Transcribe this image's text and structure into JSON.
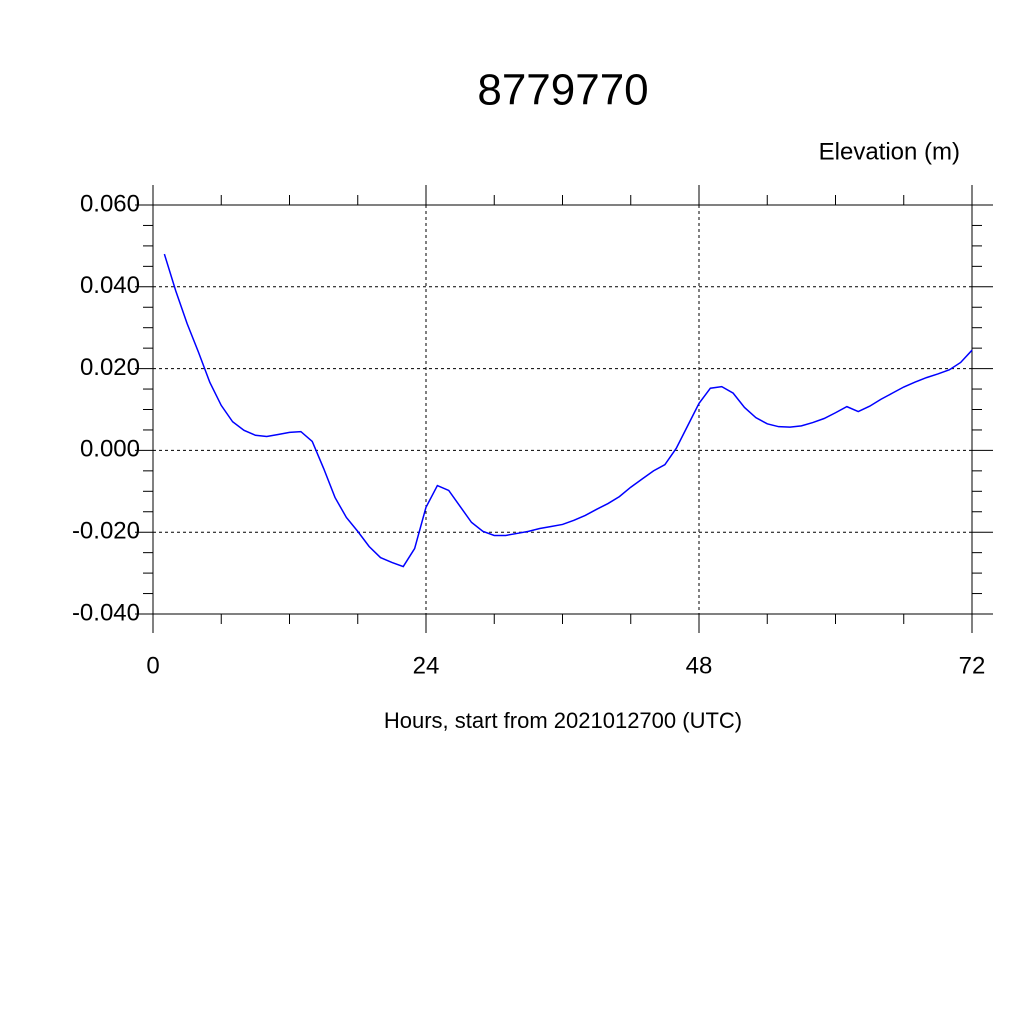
{
  "chart_data": {
    "type": "line",
    "title": "8779770",
    "y_label": "Elevation (m)",
    "x_label": "Hours, start from 2021012700 (UTC)",
    "x": [
      1,
      2,
      3,
      4,
      5,
      6,
      7,
      8,
      9,
      10,
      11,
      12,
      13,
      14,
      15,
      16,
      17,
      18,
      19,
      20,
      21,
      22,
      23,
      24,
      25,
      26,
      27,
      28,
      29,
      30,
      31,
      32,
      33,
      34,
      35,
      36,
      37,
      38,
      39,
      40,
      41,
      42,
      43,
      44,
      45,
      46,
      47,
      48,
      49,
      50,
      51,
      52,
      53,
      54,
      55,
      56,
      57,
      58,
      59,
      60,
      61,
      62,
      63,
      64,
      65,
      66,
      67,
      68,
      69,
      70,
      71,
      72
    ],
    "series": [
      {
        "name": "Elevation",
        "color": "#0000ff",
        "values": [
          0.048,
          0.039,
          0.031,
          0.024,
          0.0166,
          0.011,
          0.007,
          0.0049,
          0.0037,
          0.0034,
          0.0039,
          0.0044,
          0.0046,
          0.0022,
          -0.0044,
          -0.0115,
          -0.0164,
          -0.0198,
          -0.0235,
          -0.0262,
          -0.0274,
          -0.0284,
          -0.024,
          -0.0139,
          -0.0086,
          -0.0098,
          -0.0137,
          -0.0176,
          -0.0198,
          -0.0208,
          -0.0208,
          -0.0203,
          -0.0198,
          -0.0191,
          -0.0186,
          -0.0181,
          -0.0171,
          -0.0159,
          -0.0144,
          -0.013,
          -0.0113,
          -0.009,
          -0.007,
          -0.005,
          -0.0035,
          0.0005,
          0.006,
          0.0115,
          0.0152,
          0.0156,
          0.014,
          0.0105,
          0.008,
          0.0065,
          0.0058,
          0.0057,
          0.006,
          0.0068,
          0.0078,
          0.0092,
          0.0107,
          0.0095,
          0.0108,
          0.0125,
          0.014,
          0.0155,
          0.0167,
          0.0178,
          0.0187,
          0.0197,
          0.0215,
          0.0245
        ]
      }
    ],
    "xlim": [
      0,
      72
    ],
    "xticks": [
      0,
      24,
      48,
      72
    ],
    "ylim": [
      -0.04,
      0.06
    ],
    "yticks": [
      {
        "value": -0.04,
        "label": "-0.040"
      },
      {
        "value": -0.02,
        "label": "-0.020"
      },
      {
        "value": 0,
        "label": "0.000"
      },
      {
        "value": 0.02,
        "label": "0.020"
      },
      {
        "value": 0.04,
        "label": "0.040"
      },
      {
        "value": 0.06,
        "label": "0.060"
      }
    ],
    "grid": true
  }
}
